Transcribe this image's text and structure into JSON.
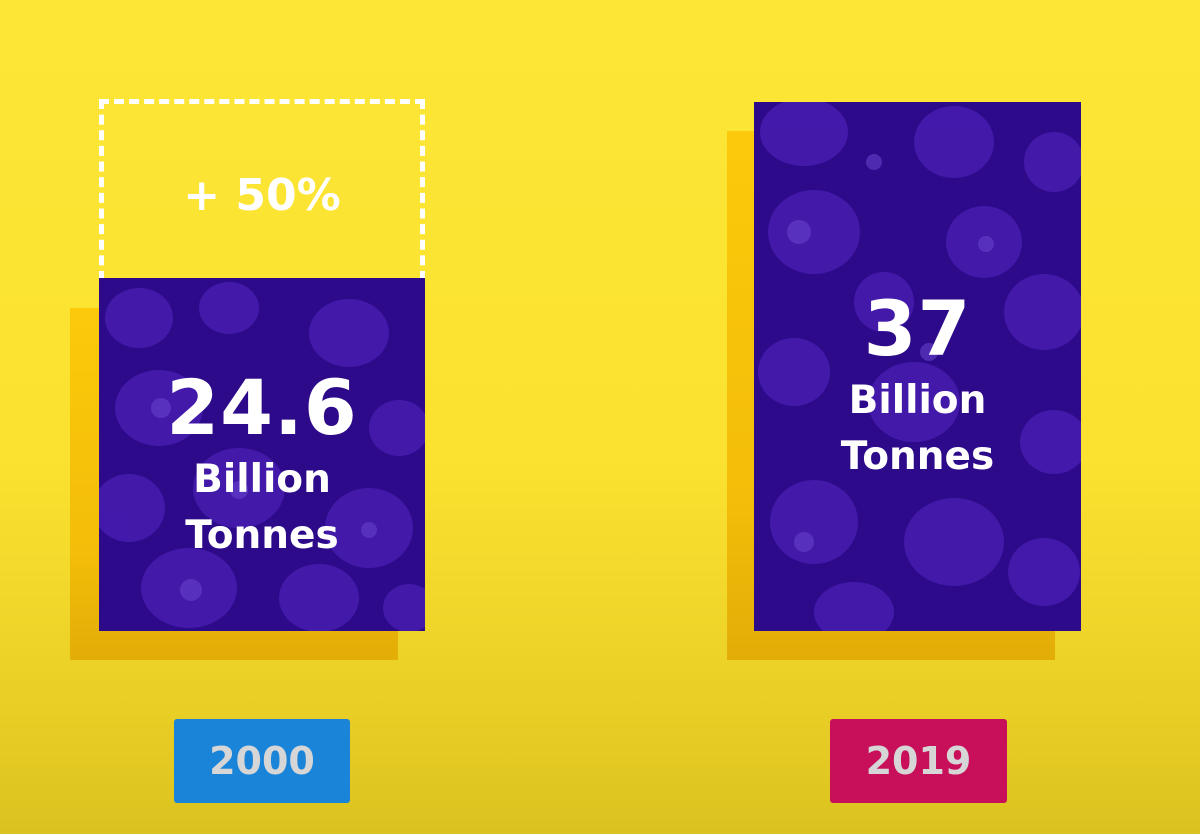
{
  "chart_data": {
    "type": "bar",
    "categories": [
      "2000",
      "2019"
    ],
    "values": [
      24.6,
      37
    ],
    "value_labels": [
      "24.6",
      "37"
    ],
    "unit_lines": [
      "Billion",
      "Tonnes"
    ],
    "annotation": "+ 50%",
    "colors": {
      "background": "#fde636",
      "bar": "#2d0a8a",
      "bar_shadow": "#fbc50a",
      "tag_2000": "#1a84d9",
      "tag_2019": "#c8105a"
    }
  }
}
